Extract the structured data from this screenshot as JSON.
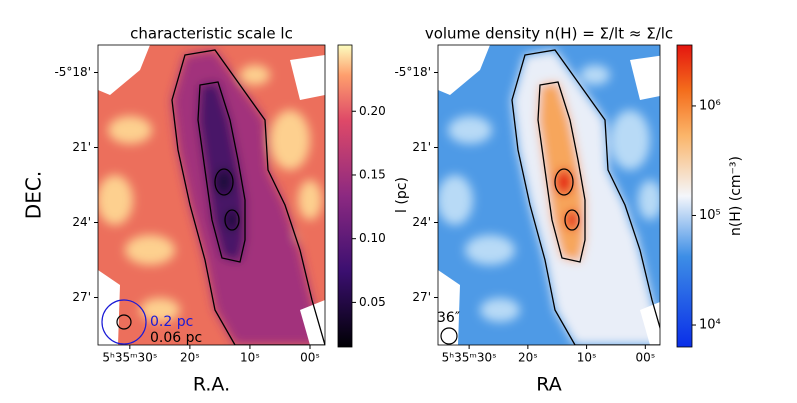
{
  "chart_data": [
    {
      "type": "image",
      "title": "characteristic scale lc",
      "xlabel": "R.A.",
      "ylabel": "DEC.",
      "xlim": [
        35.3,
        -2.5
      ],
      "xticks": [
        {
          "value": 30,
          "label": "5ʰ35ᵐ30ˢ"
        },
        {
          "value": 20,
          "label": "20ˢ"
        },
        {
          "value": 10,
          "label": "10ˢ"
        },
        {
          "value": 0,
          "label": "00ˢ"
        }
      ],
      "ylim": [
        -16.9,
        -28.9
      ],
      "yticks": [
        {
          "value": -18,
          "label": "-5°18'"
        },
        {
          "value": -21,
          "label": "21'"
        },
        {
          "value": -24,
          "label": "24'"
        },
        {
          "value": -27,
          "label": "27'"
        }
      ],
      "colorbar": {
        "colormap": "magma",
        "log": false,
        "lim": [
          0.015,
          0.252
        ],
        "ticks": [
          0.05,
          {
            "value": 0.1,
            "label": "0.10"
          },
          0.15,
          {
            "value": 0.2,
            "label": "0.20"
          }
        ]
      },
      "annotations": [
        {
          "text": "0.2 pc",
          "color": "#1a1ad6"
        },
        {
          "text": "0.06 pc",
          "color": "#000000"
        }
      ]
    },
    {
      "type": "image",
      "title": "volume density n(H) = Σ/lt ≈ Σ/lc",
      "xlabel": "RA",
      "ylabel": "l (pc)",
      "xlim": [
        35.3,
        -2.5
      ],
      "xticks": [
        {
          "value": 30,
          "label": "5ʰ35ᵐ30ˢ"
        },
        {
          "value": 20,
          "label": "20ˢ"
        },
        {
          "value": 10,
          "label": "10ˢ"
        },
        {
          "value": 0,
          "label": "00ˢ"
        }
      ],
      "ylim": [
        -16.9,
        -28.9
      ],
      "yticks": [
        {
          "value": -18,
          "label": "-5°18'"
        },
        {
          "value": -21,
          "label": "21'"
        },
        {
          "value": -24,
          "label": "24'"
        },
        {
          "value": -27,
          "label": "27'"
        }
      ],
      "colorbar": {
        "colormap": "blue-white-red",
        "log": true,
        "lim": [
          6300,
          3600000
        ],
        "label": "n(H) (cm⁻³)",
        "ticks": [
          {
            "value": 10000,
            "label": "10⁴"
          },
          {
            "value": 100000,
            "label": "10⁵"
          },
          {
            "value": 1000000,
            "label": "10⁶"
          }
        ]
      },
      "annotations": [
        {
          "text": "36″",
          "color": "#000000"
        }
      ]
    }
  ]
}
